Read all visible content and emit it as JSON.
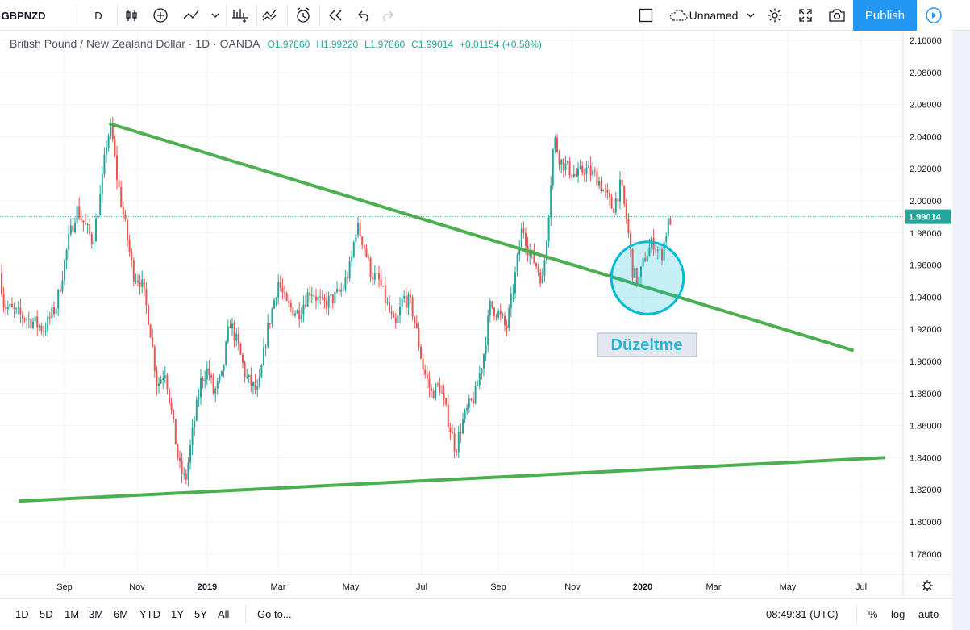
{
  "toolbar": {
    "symbol": "GBPNZD",
    "interval": "D",
    "layout_name": "Unnamed",
    "publish_label": "Publish",
    "icons": [
      "bar-style-icon",
      "indicators-icon",
      "compare-icon",
      "templates-icon",
      "alert-icon",
      "replay-icon",
      "undo-icon",
      "redo-icon",
      "layout-icon",
      "cloud-icon",
      "settings-icon",
      "fullscreen-icon",
      "snapshot-icon",
      "play-icon"
    ]
  },
  "legend": {
    "title": "British Pound / New Zealand Dollar · 1D · OANDA",
    "open": "O1.97860",
    "high": "H1.99220",
    "low": "L1.97860",
    "close": "C1.99014",
    "change": "+0.01154 (+0.58%)"
  },
  "bottom": {
    "ranges": [
      "1D",
      "5D",
      "1M",
      "3M",
      "6M",
      "YTD",
      "1Y",
      "5Y",
      "All"
    ],
    "goto_label": "Go to...",
    "time": "08:49:31 (UTC)",
    "percent_label": "%",
    "log_label": "log",
    "auto_label": "auto"
  },
  "colors": {
    "up": "#26a69a",
    "down": "#ef5350",
    "trend": "#4caf50",
    "price_label": "#26a69a",
    "accent": "#2196f3"
  },
  "chart_data": {
    "type": "candlestick",
    "symbol": "GBPNZD",
    "ylim": [
      1.77,
      2.11
    ],
    "y_ticks": [
      "2.10000",
      "2.08000",
      "2.06000",
      "2.04000",
      "2.02000",
      "2.00000",
      "1.98000",
      "1.96000",
      "1.94000",
      "1.92000",
      "1.90000",
      "1.88000",
      "1.86000",
      "1.84000",
      "1.82000",
      "1.80000",
      "1.78000"
    ],
    "x_labels": [
      "Sep",
      "Nov",
      "2019",
      "Mar",
      "May",
      "Jul",
      "Sep",
      "Nov",
      "2020",
      "Mar",
      "May",
      "Jul"
    ],
    "x_labels_bold": [
      "2019",
      "2020"
    ],
    "last_price": "1.99014",
    "last_price_value": 1.99014,
    "path": [
      [
        0,
        1.955
      ],
      [
        5,
        1.935
      ],
      [
        20,
        1.93
      ],
      [
        40,
        1.925
      ],
      [
        55,
        1.92
      ],
      [
        70,
        1.935
      ],
      [
        85,
        1.975
      ],
      [
        95,
        1.995
      ],
      [
        105,
        1.985
      ],
      [
        115,
        1.975
      ],
      [
        125,
        2.005
      ],
      [
        133,
        2.04
      ],
      [
        138,
        2.045
      ],
      [
        145,
        2.015
      ],
      [
        155,
        1.985
      ],
      [
        165,
        1.955
      ],
      [
        175,
        1.95
      ],
      [
        185,
        1.925
      ],
      [
        195,
        1.885
      ],
      [
        205,
        1.895
      ],
      [
        215,
        1.86
      ],
      [
        222,
        1.835
      ],
      [
        230,
        1.825
      ],
      [
        240,
        1.86
      ],
      [
        250,
        1.89
      ],
      [
        258,
        1.895
      ],
      [
        265,
        1.88
      ],
      [
        275,
        1.89
      ],
      [
        285,
        1.925
      ],
      [
        295,
        1.91
      ],
      [
        305,
        1.89
      ],
      [
        320,
        1.88
      ],
      [
        330,
        1.915
      ],
      [
        345,
        1.95
      ],
      [
        355,
        1.935
      ],
      [
        370,
        1.93
      ],
      [
        385,
        1.945
      ],
      [
        400,
        1.935
      ],
      [
        415,
        1.94
      ],
      [
        425,
        1.945
      ],
      [
        435,
        1.96
      ],
      [
        442,
        1.985
      ],
      [
        450,
        1.975
      ],
      [
        460,
        1.955
      ],
      [
        470,
        1.95
      ],
      [
        480,
        1.935
      ],
      [
        490,
        1.92
      ],
      [
        500,
        1.94
      ],
      [
        510,
        1.935
      ],
      [
        518,
        1.915
      ],
      [
        525,
        1.895
      ],
      [
        535,
        1.88
      ],
      [
        545,
        1.885
      ],
      [
        555,
        1.865
      ],
      [
        565,
        1.845
      ],
      [
        572,
        1.86
      ],
      [
        580,
        1.87
      ],
      [
        590,
        1.88
      ],
      [
        600,
        1.905
      ],
      [
        608,
        1.935
      ],
      [
        618,
        1.93
      ],
      [
        628,
        1.92
      ],
      [
        638,
        1.95
      ],
      [
        648,
        1.985
      ],
      [
        655,
        1.97
      ],
      [
        665,
        1.96
      ],
      [
        673,
        1.95
      ],
      [
        680,
        1.99
      ],
      [
        687,
        2.04
      ],
      [
        695,
        2.025
      ],
      [
        705,
        2.02
      ],
      [
        715,
        2.015
      ],
      [
        725,
        2.02
      ],
      [
        740,
        2.015
      ],
      [
        750,
        2.005
      ],
      [
        760,
        1.995
      ],
      [
        770,
        2.01
      ],
      [
        778,
        1.985
      ],
      [
        785,
        1.955
      ],
      [
        792,
        1.95
      ],
      [
        800,
        1.965
      ],
      [
        810,
        1.975
      ],
      [
        820,
        1.965
      ],
      [
        828,
        1.985
      ],
      [
        833,
        1.99
      ]
    ],
    "annotations": {
      "label": "Düzeltme",
      "upper_trendline": [
        [
          137,
          2.048
        ],
        [
          1057,
          1.907
        ]
      ],
      "lower_trendline": [
        [
          25,
          1.813
        ],
        [
          1096,
          1.84
        ]
      ],
      "circle": {
        "cx": 803,
        "cy": 1.952,
        "r_frac": 0.136
      }
    }
  }
}
